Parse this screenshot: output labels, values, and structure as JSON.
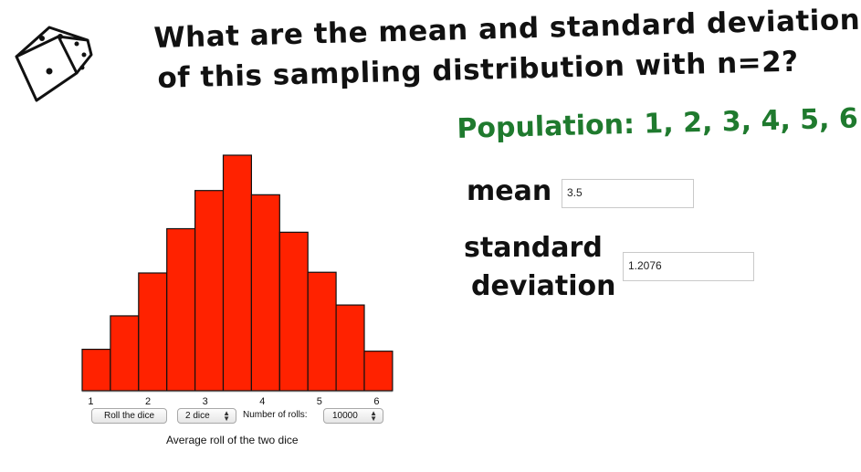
{
  "question": {
    "line1": "What are the mean and standard deviation",
    "line2": "of this sampling distribution with n=2?"
  },
  "population": {
    "text": "Population: 1, 2, 3, 4, 5, 6",
    "color": "#1f7a2e"
  },
  "mean": {
    "label": "mean",
    "value": "3.5"
  },
  "std_dev": {
    "label_line1": "standard",
    "label_line2": "deviation",
    "value": "1.2076"
  },
  "controls": {
    "roll_button": "Roll the dice",
    "dice_select": "2 dice",
    "rolls_label": "Number of rolls:",
    "rolls_select": "10000"
  },
  "icons": {
    "dice": "dice-icon"
  },
  "chart_data": {
    "type": "bar",
    "x": [
      1,
      1.5,
      2,
      2.5,
      3,
      3.5,
      4,
      4.5,
      5,
      5.5,
      6
    ],
    "values": [
      0.176,
      0.318,
      0.5,
      0.688,
      0.85,
      1.0,
      0.832,
      0.673,
      0.503,
      0.364,
      0.168
    ],
    "tick_labels": [
      "1",
      "2",
      "3",
      "4",
      "5",
      "6"
    ],
    "xlabel": "Average roll of the two dice",
    "bar_color": "#ff2200"
  }
}
